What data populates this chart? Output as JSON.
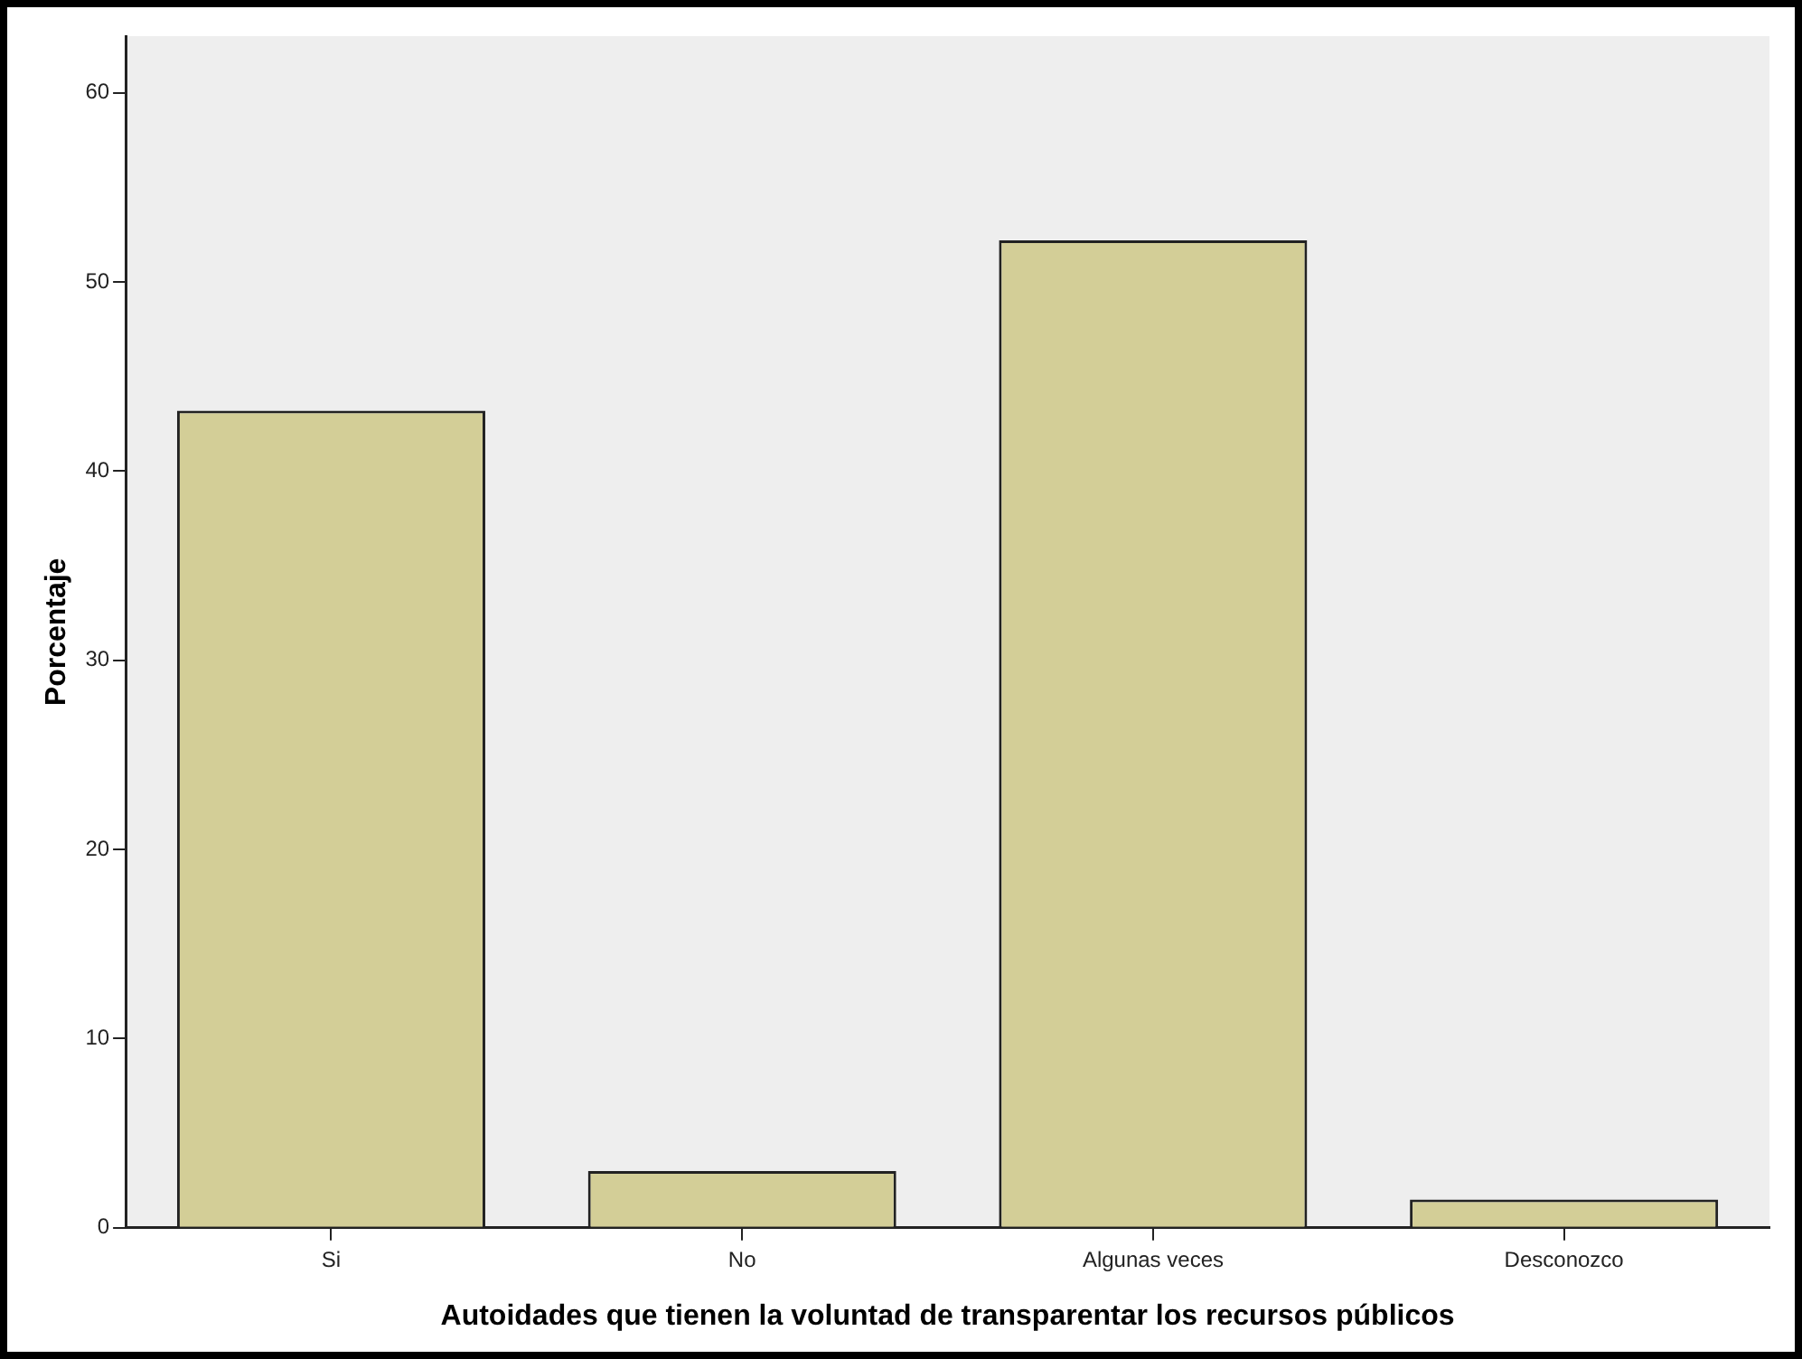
{
  "chart_data": {
    "type": "bar",
    "xlabel": "Autoidades que tienen la voluntad de transparentar los recursos públicos",
    "ylabel": "Porcentaje",
    "categories": [
      "Si",
      "No",
      "Algunas veces",
      "Desconozco"
    ],
    "values": [
      43.2,
      3.0,
      52.2,
      1.5
    ],
    "color": "#d3ce97",
    "ylim": [
      0,
      63
    ],
    "yticks": [
      0,
      10,
      20,
      30,
      40,
      50,
      60
    ]
  }
}
